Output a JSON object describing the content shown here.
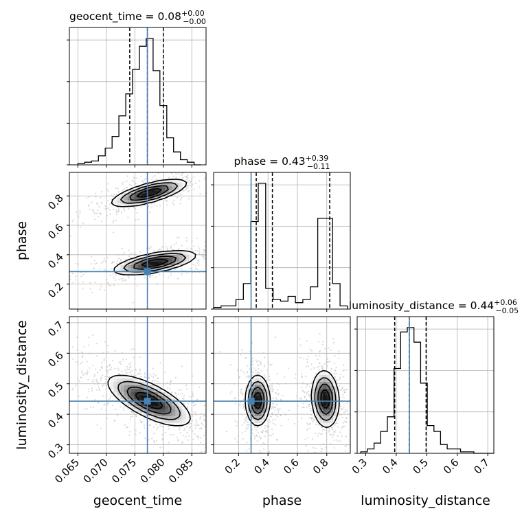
{
  "chart_data": {
    "type": "corner",
    "parameters": [
      {
        "name": "geocent_time",
        "label": "geocent_time",
        "range": [
          0.0635,
          0.0875
        ],
        "ticks": [
          "0.065",
          "0.070",
          "0.075",
          "0.080",
          "0.085"
        ],
        "tick_values": [
          0.065,
          0.07,
          0.075,
          0.08,
          0.085
        ],
        "truth": 0.0772,
        "median": 0.0772,
        "q_lo": 0.0741,
        "q_hi": 0.08,
        "title_main": "geocent_time = 0.08",
        "title_sup": "+0.00",
        "title_sub": "−0.00"
      },
      {
        "name": "phase",
        "label": "phase",
        "range": [
          0.03,
          0.96
        ],
        "ticks": [
          "0.2",
          "0.4",
          "0.6",
          "0.8"
        ],
        "tick_values": [
          0.2,
          0.4,
          0.6,
          0.8
        ],
        "truth": 0.285,
        "median": 0.43,
        "q_lo": 0.32,
        "q_hi": 0.82,
        "title_main": "phase = 0.43",
        "title_sup": "+0.39",
        "title_sub": "−0.11"
      },
      {
        "name": "luminosity_distance",
        "label": "luminosity_distance",
        "range": [
          0.272,
          0.72
        ],
        "ticks": [
          "0.3",
          "0.4",
          "0.5",
          "0.6",
          "0.7"
        ],
        "tick_values": [
          0.3,
          0.4,
          0.5,
          0.6,
          0.7
        ],
        "truth": 0.443,
        "median": 0.443,
        "q_lo": 0.395,
        "q_hi": 0.498,
        "title_main": "luminosity_distance = 0.44",
        "title_sup": "+0.06",
        "title_sub": "−0.05"
      }
    ],
    "histograms": [
      {
        "parameter": "geocent_time",
        "bin_edges": [
          0.065,
          0.0662,
          0.0674,
          0.0686,
          0.0698,
          0.071,
          0.0722,
          0.0734,
          0.0746,
          0.0758,
          0.077,
          0.0782,
          0.0794,
          0.0806,
          0.0818,
          0.083,
          0.0842,
          0.0854,
          0.0866
        ],
        "counts": [
          1,
          2,
          3,
          7,
          13,
          22,
          38,
          55,
          74,
          92,
          98,
          73,
          46,
          21,
          10,
          4,
          2,
          0
        ]
      },
      {
        "parameter": "phase",
        "bin_edges": [
          0.03,
          0.0806,
          0.1312,
          0.1818,
          0.2324,
          0.283,
          0.3336,
          0.3842,
          0.4348,
          0.4854,
          0.536,
          0.5866,
          0.6372,
          0.6878,
          0.7384,
          0.789,
          0.8396,
          0.8902,
          0.9408
        ],
        "counts": [
          1,
          2,
          2,
          6,
          16,
          55,
          79,
          13,
          6,
          5,
          8,
          4,
          6,
          14,
          57,
          57,
          16,
          2
        ]
      },
      {
        "parameter": "luminosity_distance",
        "bin_edges": [
          0.2838,
          0.3056,
          0.3274,
          0.3492,
          0.371,
          0.3928,
          0.4146,
          0.4364,
          0.4582,
          0.48,
          0.5018,
          0.5236,
          0.5454,
          0.5672,
          0.589,
          0.6108,
          0.6326,
          0.6544,
          0.6762,
          0.698,
          0.7198
        ],
        "counts": [
          1,
          3,
          7,
          15,
          25,
          58,
          83,
          86,
          76,
          48,
          19,
          15,
          6,
          3,
          3,
          1,
          1,
          0,
          0,
          0
        ]
      }
    ],
    "density_panels": [
      {
        "x": "geocent_time",
        "y": "phase",
        "modes": [
          {
            "center": [
              0.0775,
              0.82
            ],
            "sigma": [
              0.0032,
              0.045
            ],
            "corr": 0.7,
            "weight": 0.5
          },
          {
            "center": [
              0.0785,
              0.345
            ],
            "sigma": [
              0.0035,
              0.04
            ],
            "corr": 0.6,
            "weight": 0.5
          }
        ]
      },
      {
        "x": "geocent_time",
        "y": "luminosity_distance",
        "modes": [
          {
            "center": [
              0.0775,
              0.445
            ],
            "sigma": [
              0.0035,
              0.04
            ],
            "corr": -0.7,
            "weight": 1.0
          }
        ]
      },
      {
        "x": "phase",
        "y": "luminosity_distance",
        "modes": [
          {
            "center": [
              0.33,
              0.445
            ],
            "sigma": [
              0.04,
              0.04
            ],
            "corr": 0.0,
            "weight": 0.5
          },
          {
            "center": [
              0.79,
              0.45
            ],
            "sigma": [
              0.045,
              0.045
            ],
            "corr": -0.1,
            "weight": 0.5
          }
        ]
      }
    ],
    "grid": true,
    "colors": {
      "truth": "#4682b4",
      "contour": "#000000",
      "scatter": "#bbbbbb",
      "hist": "#000000"
    }
  }
}
